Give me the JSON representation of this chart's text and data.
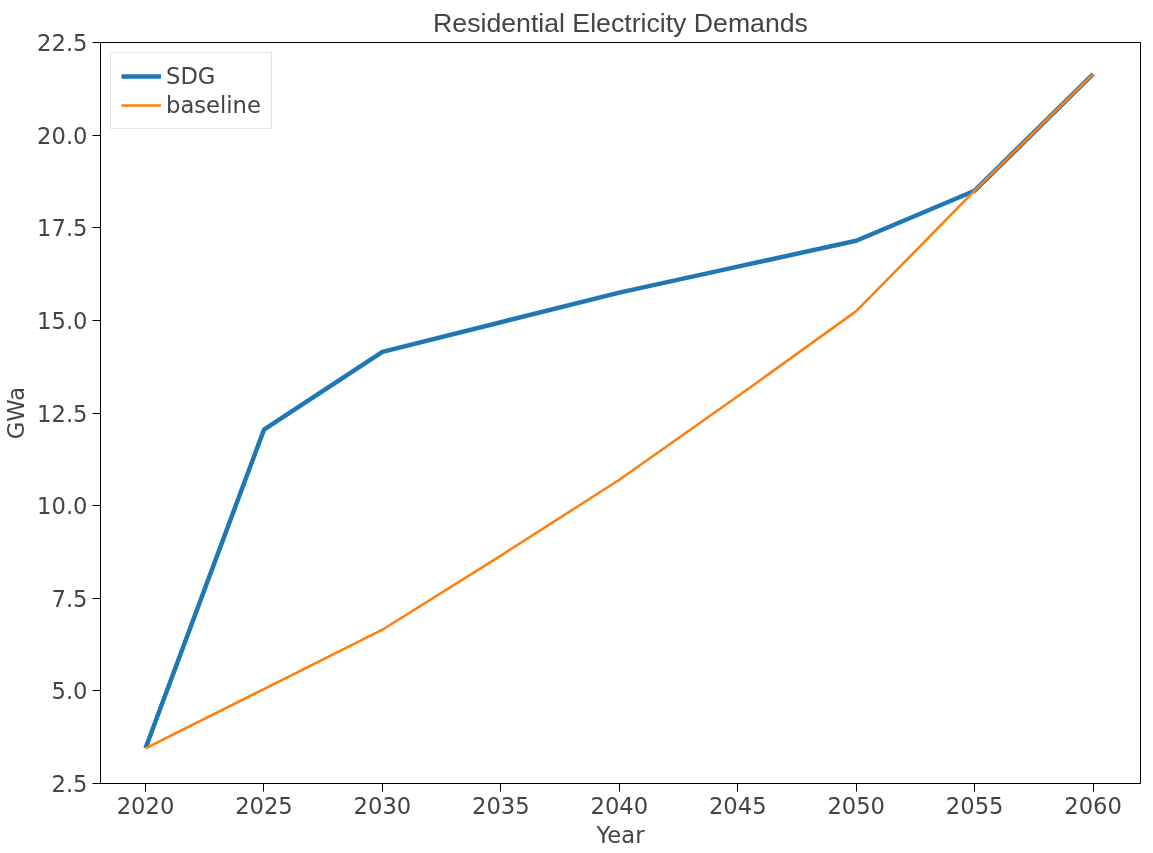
{
  "chart_data": {
    "type": "line",
    "title": "Residential Electricity Demands",
    "xlabel": "Year",
    "ylabel": "GWa",
    "x": [
      2020,
      2025,
      2030,
      2035,
      2040,
      2045,
      2050,
      2055,
      2060
    ],
    "series": [
      {
        "name": "SDG",
        "color": "#1f77b4",
        "values": [
          3.45,
          12.05,
          14.15,
          14.95,
          15.75,
          16.45,
          17.15,
          18.5,
          21.65
        ]
      },
      {
        "name": "baseline",
        "color": "#ff7f0e",
        "values": [
          3.45,
          5.05,
          6.65,
          8.65,
          10.7,
          12.95,
          15.25,
          18.5,
          21.65
        ]
      }
    ],
    "xlim": [
      2018.1,
      2062
    ],
    "xticks": [
      2020,
      2025,
      2030,
      2035,
      2040,
      2045,
      2050,
      2055,
      2060
    ],
    "ylim": [
      2.5,
      22.5
    ],
    "yticks": [
      {
        "value": 2.5,
        "label": "2.5"
      },
      {
        "value": 5,
        "label": "5.0"
      },
      {
        "value": 7.5,
        "label": "7.5"
      },
      {
        "value": 10,
        "label": "10.0"
      },
      {
        "value": 12.5,
        "label": "12.5"
      },
      {
        "value": 15,
        "label": "15.0"
      },
      {
        "value": 17.5,
        "label": "17.5"
      },
      {
        "value": 20,
        "label": "20.0"
      },
      {
        "value": 22.5,
        "label": "22.5"
      }
    ],
    "grid": false,
    "legend": "top left"
  }
}
